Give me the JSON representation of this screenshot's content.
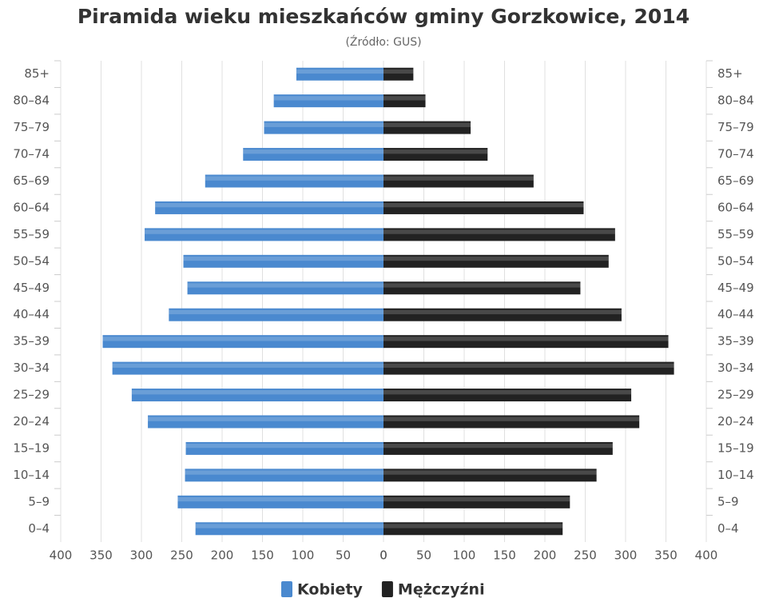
{
  "chart_data": {
    "type": "pyramid",
    "title": "Piramida wieku mieszkańców gminy Gorzkowice, 2014",
    "subtitle": "(Źródło: GUS)",
    "categories": [
      "85+",
      "80–84",
      "75–79",
      "70–74",
      "65–69",
      "60–64",
      "55–59",
      "50–54",
      "45–49",
      "40–44",
      "35–39",
      "30–34",
      "25–29",
      "20–24",
      "15–19",
      "10–14",
      "5–9",
      "0–4"
    ],
    "series": [
      {
        "name": "Kobiety",
        "color": "#4a89cf",
        "side": "left",
        "values": [
          108,
          136,
          148,
          174,
          221,
          283,
          296,
          248,
          243,
          266,
          348,
          336,
          312,
          292,
          245,
          246,
          255,
          233
        ]
      },
      {
        "name": "Mężczyźni",
        "color": "#222222",
        "side": "right",
        "values": [
          37,
          52,
          108,
          129,
          186,
          248,
          287,
          279,
          244,
          295,
          353,
          360,
          307,
          317,
          284,
          264,
          231,
          222
        ]
      }
    ],
    "xlim": [
      0,
      400
    ],
    "xticks": [
      0,
      50,
      100,
      150,
      200,
      250,
      300,
      350,
      400
    ],
    "grid": true
  }
}
